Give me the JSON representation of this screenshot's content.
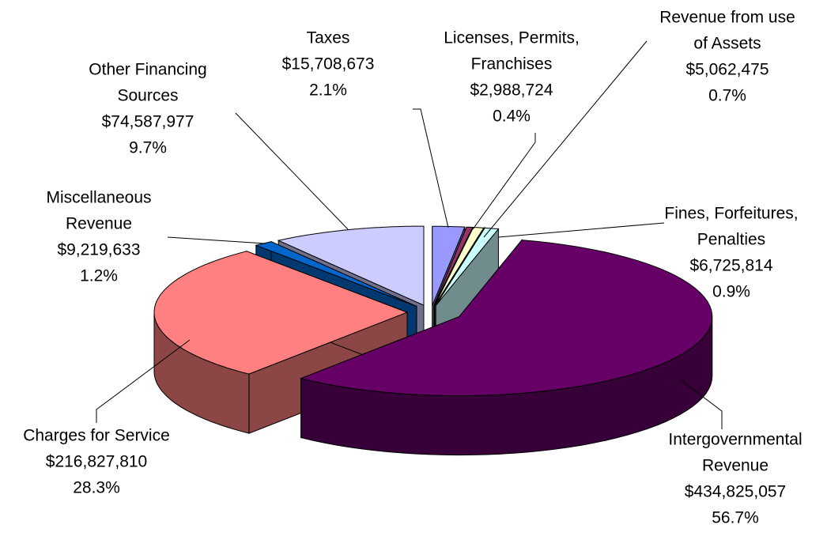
{
  "chart_data": {
    "type": "pie3d",
    "categories": [
      [
        "Taxes"
      ],
      [
        "Licenses, Permits,",
        "Franchises"
      ],
      [
        "Revenue from use",
        "of Assets"
      ],
      [
        "Fines, Forfeitures,",
        "Penalties"
      ],
      [
        "Intergovernmental",
        "Revenue"
      ],
      [
        "Charges for Service"
      ],
      [
        "Miscellaneous",
        "Revenue"
      ],
      [
        "Other Financing",
        "Sources"
      ]
    ],
    "values": [
      15708673,
      2988724,
      5062475,
      6725814,
      434825057,
      216827810,
      9219633,
      74587977
    ],
    "value_labels": [
      "$15,708,673",
      "$2,988,724",
      "$5,062,475",
      "$6,725,814",
      "$434,825,057",
      "$216,827,810",
      "$9,219,633",
      "$74,587,977"
    ],
    "percent_labels": [
      "2.1%",
      "0.4%",
      "0.7%",
      "0.9%",
      "56.7%",
      "28.3%",
      "1.2%",
      "9.7%"
    ],
    "colors": [
      "#9999ff",
      "#993366",
      "#ffffcc",
      "#ccffff",
      "#660066",
      "#ff8080",
      "#0066cc",
      "#ccccff"
    ]
  }
}
